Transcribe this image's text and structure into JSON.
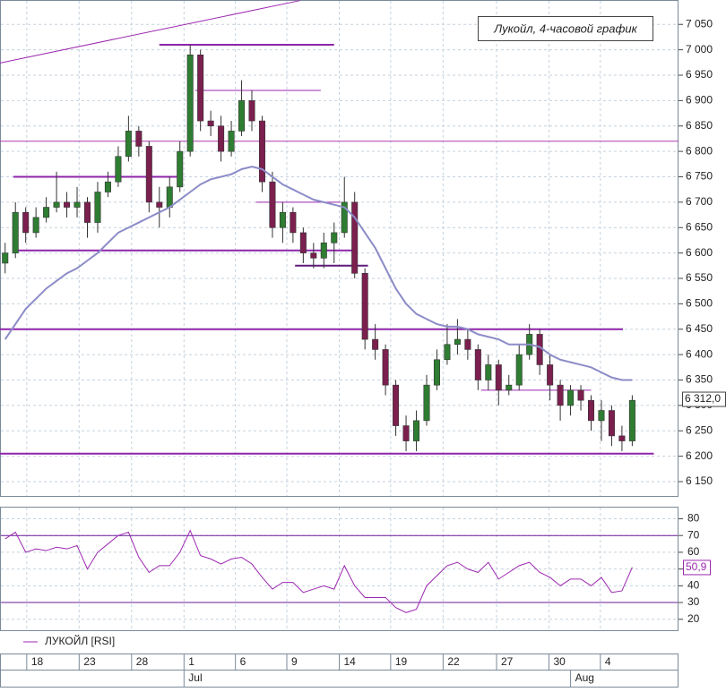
{
  "chart_data": [
    {
      "type": "candlestick",
      "title": "Лукойл, 4-часовой график",
      "grid": true,
      "xlim": [
        -0.5,
        65.5
      ],
      "xticks": [
        {
          "value": 2.1,
          "label": "18"
        },
        {
          "value": 7.2,
          "label": "23"
        },
        {
          "value": 12.3,
          "label": "28"
        },
        {
          "value": 17.4,
          "label": "1"
        },
        {
          "value": 22.4,
          "label": "6"
        },
        {
          "value": 27.4,
          "label": "9"
        },
        {
          "value": 32.5,
          "label": "14"
        },
        {
          "value": 37.5,
          "label": "19"
        },
        {
          "value": 42.6,
          "label": "22"
        },
        {
          "value": 47.8,
          "label": "27"
        },
        {
          "value": 52.9,
          "label": "30"
        },
        {
          "value": 57.9,
          "label": "4"
        }
      ],
      "month_ticks": [
        {
          "value": 17.4,
          "label": "Jul"
        },
        {
          "value": 55.0,
          "label": "Aug"
        }
      ],
      "ylim": [
        6120,
        7098
      ],
      "yticks": [
        {
          "value": 6150,
          "label": "6 150"
        },
        {
          "value": 6200,
          "label": "6 200"
        },
        {
          "value": 6250,
          "label": "6 250"
        },
        {
          "value": 6300,
          "label": "6 300"
        },
        {
          "value": 6350,
          "label": "6 350"
        },
        {
          "value": 6400,
          "label": "6 400"
        },
        {
          "value": 6450,
          "label": "6 450"
        },
        {
          "value": 6500,
          "label": "6 500"
        },
        {
          "value": 6550,
          "label": "6 550"
        },
        {
          "value": 6600,
          "label": "6 600"
        },
        {
          "value": 6650,
          "label": "6 650"
        },
        {
          "value": 6700,
          "label": "6 700"
        },
        {
          "value": 6750,
          "label": "6 750"
        },
        {
          "value": 6800,
          "label": "6 800"
        },
        {
          "value": 6850,
          "label": "6 850"
        },
        {
          "value": 6900,
          "label": "6 900"
        },
        {
          "value": 6950,
          "label": "6 950"
        },
        {
          "value": 7000,
          "label": "7 000"
        },
        {
          "value": 7050,
          "label": "7 050"
        }
      ],
      "up_color": "#2e7d32",
      "down_color": "#7b1f4f",
      "open": [
        6580,
        6600,
        6680,
        6640,
        6670,
        6690,
        6700,
        6690,
        6700,
        6660,
        6720,
        6740,
        6790,
        6840,
        6810,
        6700,
        6690,
        6730,
        6800,
        6990,
        6860,
        6850,
        6800,
        6840,
        6900,
        6860,
        6740,
        6650,
        6680,
        6640,
        6600,
        6590,
        6620,
        6640,
        6700,
        6560,
        6430,
        6410,
        6340,
        6260,
        6230,
        6270,
        6340,
        6390,
        6420,
        6430,
        6410,
        6350,
        6380,
        6330,
        6340,
        6400,
        6440,
        6380,
        6340,
        6300,
        6330,
        6310,
        6270,
        6290,
        6240,
        6230
      ],
      "high": [
        6620,
        6700,
        6690,
        6690,
        6710,
        6760,
        6720,
        6730,
        6710,
        6740,
        6760,
        6810,
        6870,
        6850,
        6820,
        6730,
        6750,
        6820,
        7010,
        7000,
        6880,
        6870,
        6860,
        6940,
        6920,
        6870,
        6760,
        6700,
        6690,
        6650,
        6620,
        6640,
        6660,
        6750,
        6720,
        6570,
        6460,
        6420,
        6350,
        6280,
        6290,
        6360,
        6410,
        6460,
        6470,
        6450,
        6420,
        6400,
        6390,
        6360,
        6420,
        6460,
        6450,
        6400,
        6350,
        6340,
        6340,
        6320,
        6310,
        6300,
        6260,
        6320
      ],
      "low": [
        6560,
        6590,
        6620,
        6630,
        6660,
        6680,
        6670,
        6670,
        6630,
        6640,
        6710,
        6730,
        6780,
        6790,
        6680,
        6650,
        6670,
        6720,
        6790,
        6840,
        6830,
        6780,
        6790,
        6830,
        6840,
        6720,
        6630,
        6620,
        6620,
        6580,
        6570,
        6570,
        6580,
        6630,
        6550,
        6410,
        6390,
        6320,
        6240,
        6210,
        6210,
        6260,
        6330,
        6380,
        6400,
        6390,
        6330,
        6330,
        6300,
        6320,
        6330,
        6390,
        6360,
        6310,
        6270,
        6280,
        6290,
        6250,
        6230,
        6220,
        6210,
        6220
      ],
      "close": [
        6600,
        6680,
        6640,
        6670,
        6690,
        6700,
        6690,
        6700,
        6660,
        6720,
        6740,
        6790,
        6840,
        6810,
        6700,
        6690,
        6730,
        6800,
        6990,
        6860,
        6850,
        6800,
        6840,
        6900,
        6860,
        6740,
        6650,
        6680,
        6640,
        6600,
        6590,
        6620,
        6640,
        6700,
        6560,
        6430,
        6410,
        6340,
        6260,
        6230,
        6270,
        6340,
        6390,
        6420,
        6430,
        6410,
        6350,
        6380,
        6330,
        6340,
        6400,
        6440,
        6380,
        6340,
        6300,
        6330,
        6310,
        6270,
        6290,
        6240,
        6230,
        6310
      ],
      "ma": {
        "color": "#8c8cc8",
        "values": [
          6430,
          6460,
          6490,
          6510,
          6530,
          6545,
          6560,
          6570,
          6585,
          6600,
          6620,
          6640,
          6650,
          6660,
          6670,
          6680,
          6690,
          6705,
          6720,
          6735,
          6745,
          6750,
          6755,
          6765,
          6770,
          6765,
          6750,
          6735,
          6725,
          6715,
          6705,
          6700,
          6695,
          6690,
          6670,
          6640,
          6610,
          6570,
          6530,
          6500,
          6480,
          6470,
          6460,
          6455,
          6455,
          6450,
          6440,
          6435,
          6430,
          6420,
          6420,
          6420,
          6415,
          6400,
          6390,
          6385,
          6380,
          6375,
          6365,
          6355,
          6350,
          6350
        ]
      },
      "levels": [
        {
          "value": 7010,
          "x": [
            15.0,
            32.0
          ],
          "color": "#8e24aa",
          "width": 2
        },
        {
          "value": 6920,
          "x": [
            18.5,
            30.7
          ],
          "color": "#9c27b0",
          "width": 1
        },
        {
          "value": 6820,
          "x": [
            -0.5,
            65.5
          ],
          "color": "#b03cb0",
          "width": 1
        },
        {
          "value": 6750,
          "x": [
            0.8,
            16.7
          ],
          "color": "#8e24aa",
          "width": 2
        },
        {
          "value": 6700,
          "x": [
            24.4,
            32.6
          ],
          "color": "#9c27b0",
          "width": 1
        },
        {
          "value": 6605,
          "x": [
            0.8,
            34.2
          ],
          "color": "#8e24aa",
          "width": 2
        },
        {
          "value": 6575,
          "x": [
            28.2,
            35.3
          ],
          "color": "#5e1a7a",
          "width": 2
        },
        {
          "value": 6450,
          "x": [
            -0.5,
            60.1
          ],
          "color": "#8e24aa",
          "width": 2
        },
        {
          "value": 6330,
          "x": [
            46.3,
            57.0
          ],
          "color": "#9c27b0",
          "width": 1
        },
        {
          "value": 6205,
          "x": [
            -0.5,
            63.1
          ],
          "color": "#8e24aa",
          "width": 2
        }
      ],
      "trendlines": [
        {
          "x": [
            -0.5,
            28.7
          ],
          "y": [
            6974,
            7097
          ],
          "color": "#9c27b0"
        }
      ],
      "last_value": {
        "value": 6312,
        "label": "6 312,0"
      }
    },
    {
      "type": "line",
      "grid": true,
      "ylim": [
        14,
        84
      ],
      "yticks": [
        20,
        30,
        40,
        50,
        60,
        70,
        80
      ],
      "series": [
        {
          "name": "ЛУКОЙЛ [RSI]",
          "color": "#9c27b0",
          "values": [
            68,
            72,
            60,
            62,
            61,
            63,
            62,
            64,
            50,
            60,
            65,
            70,
            72,
            57,
            48,
            52,
            52,
            60,
            73,
            58,
            56,
            53,
            56,
            57,
            53,
            45,
            38,
            42,
            42,
            36,
            38,
            40,
            38,
            52,
            40,
            33,
            33,
            33,
            27,
            24,
            26,
            40,
            46,
            52,
            54,
            50,
            48,
            54,
            44,
            48,
            52,
            54,
            48,
            45,
            40,
            44,
            44,
            40,
            45,
            36,
            37,
            51
          ]
        }
      ],
      "levels": [
        70,
        30
      ],
      "last_value": {
        "value": 50.9,
        "label": "50,9"
      }
    }
  ]
}
